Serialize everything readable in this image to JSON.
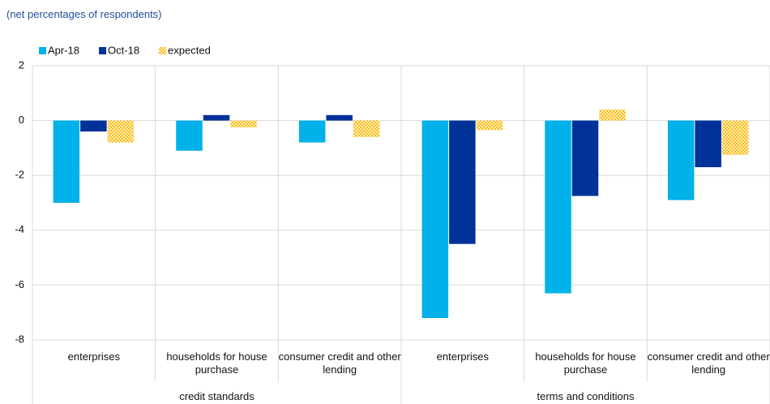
{
  "chart_data": {
    "type": "bar",
    "subtitle": "(net percentages of respondents)",
    "categories": [
      "enterprises",
      "households for house purchase",
      "consumer credit and other lending",
      "enterprises",
      "households for house purchase",
      "consumer credit and other lending"
    ],
    "groups": [
      {
        "label": "credit standards"
      },
      {
        "label": "terms and conditions"
      }
    ],
    "series": [
      {
        "name": "Apr-18",
        "color": "#00b1ea",
        "values": [
          -3.0,
          -1.1,
          -0.8,
          -7.2,
          -6.3,
          -2.9
        ]
      },
      {
        "name": "Oct-18",
        "color": "#003299",
        "values": [
          -0.4,
          0.2,
          0.2,
          -4.5,
          -2.75,
          -1.7
        ]
      },
      {
        "name": "expected",
        "color": "#ffb400",
        "pattern": "dotted",
        "values": [
          -0.8,
          -0.25,
          -0.6,
          -0.35,
          0.4,
          -1.25
        ]
      }
    ],
    "ylim": [
      -8,
      2
    ],
    "yticks": [
      -8,
      -6,
      -4,
      -2,
      0,
      2
    ],
    "grid": true,
    "legend": "top-left"
  }
}
